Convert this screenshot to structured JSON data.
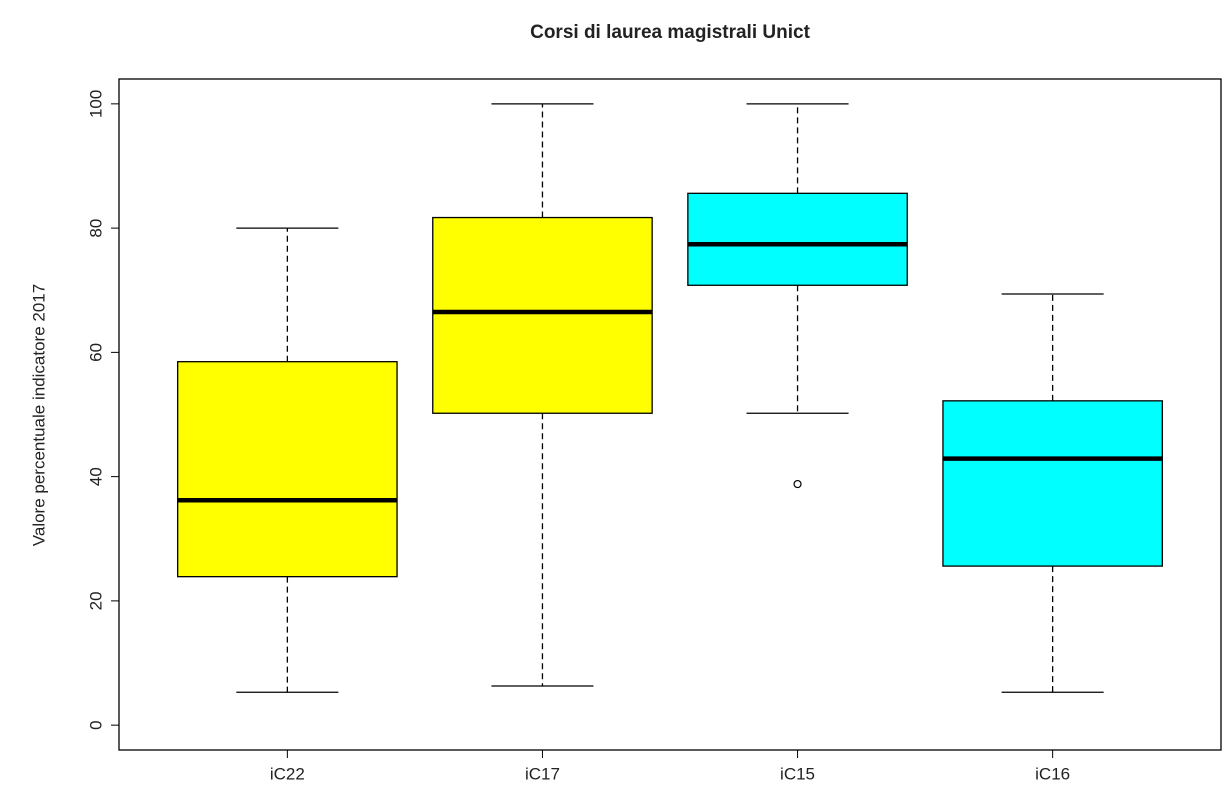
{
  "chart_data": {
    "type": "boxplot",
    "title": "Corsi di laurea magistrali Unict",
    "y_label": "Valore percentuale indicatore 2017",
    "categories": [
      "iC22",
      "iC17",
      "iC15",
      "iC16"
    ],
    "colors": [
      "#ffff00",
      "#ffff00",
      "#00ffff",
      "#00ffff"
    ],
    "min": [
      5.3,
      6.3,
      50.2,
      5.3
    ],
    "q1": [
      23.9,
      50.2,
      70.8,
      25.6
    ],
    "median": [
      36.2,
      66.5,
      77.4,
      42.9
    ],
    "q3": [
      58.5,
      81.7,
      85.6,
      52.2
    ],
    "max": [
      80,
      100,
      100,
      69.4
    ],
    "outliers": [
      [],
      [],
      [
        38.8
      ],
      []
    ],
    "ylim": [
      -4,
      104
    ],
    "yticks": [
      0,
      20,
      40,
      60,
      80,
      100
    ]
  }
}
